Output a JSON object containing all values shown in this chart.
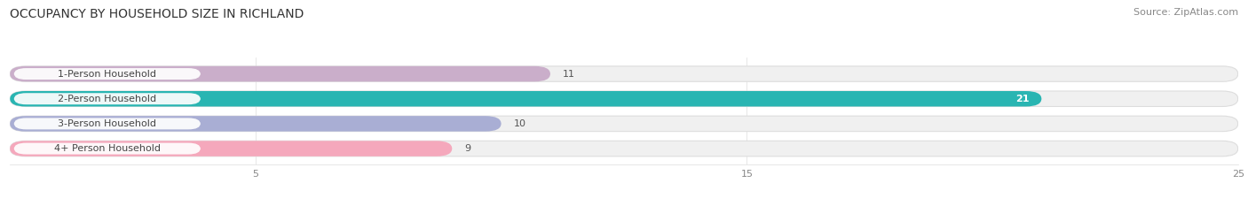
{
  "title": "OCCUPANCY BY HOUSEHOLD SIZE IN RICHLAND",
  "source": "Source: ZipAtlas.com",
  "categories": [
    "1-Person Household",
    "2-Person Household",
    "3-Person Household",
    "4+ Person Household"
  ],
  "values": [
    11,
    21,
    10,
    9
  ],
  "bar_colors": [
    "#caaeca",
    "#29b5b2",
    "#a9aed4",
    "#f5a8bc"
  ],
  "bar_bg_color": "#f0f0f0",
  "label_bg_color": "#ffffff",
  "xlim": [
    0,
    25
  ],
  "xticks": [
    5,
    15,
    25
  ],
  "title_fontsize": 10,
  "source_fontsize": 8,
  "label_fontsize": 8,
  "value_fontsize": 8,
  "bar_height": 0.62,
  "figsize": [
    14.06,
    2.33
  ],
  "dpi": 100
}
